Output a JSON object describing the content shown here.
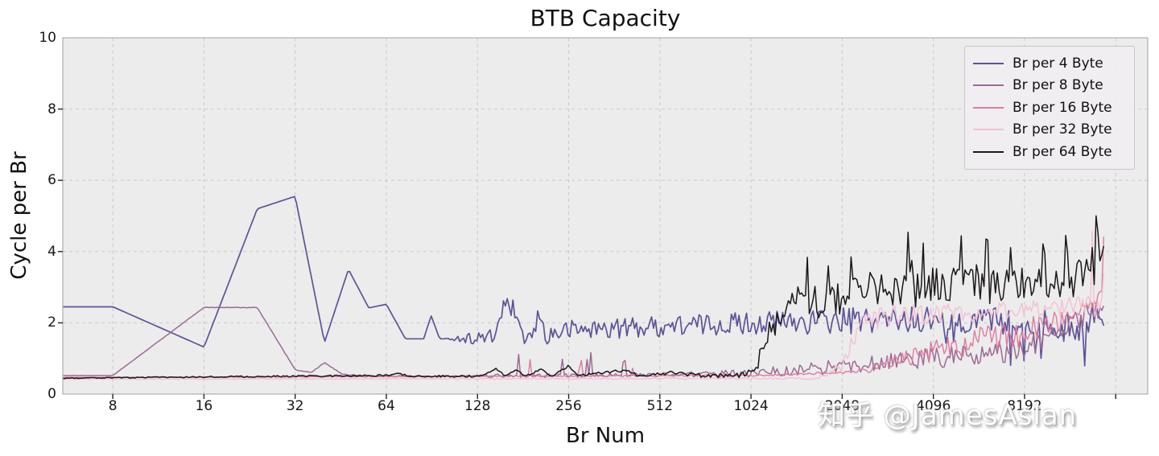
{
  "title": "BTB Capacity",
  "watermark": "知乎 @JamesAslan",
  "chart_data": {
    "type": "line",
    "title": "BTB Capacity",
    "xlabel": "Br Num",
    "ylabel": "Cycle per Br",
    "xscale": "log2",
    "xlim": [
      5.47,
      20900
    ],
    "ylim": [
      0,
      10
    ],
    "x_data_end": 15000,
    "xticks": [
      8,
      16,
      32,
      64,
      128,
      256,
      512,
      1024,
      2048,
      4096,
      8192
    ],
    "xticks_unlabeled": [
      16384
    ],
    "yticks": [
      0,
      2,
      4,
      6,
      8,
      10
    ],
    "grid": "dashed",
    "legend_position": "upper right",
    "style": {
      "plot_bg": "#ececec",
      "grid_color": "#c9c9c9",
      "border_color": "#b2aeb2",
      "tick_color": "#222222",
      "legend_bg": "#f0eef0",
      "legend_border": "#c9c5c9"
    },
    "series": [
      {
        "name": "Br per 4 Byte",
        "color": "#5d5397",
        "linewidth": 1.7,
        "bias": 0,
        "anchors": [
          [
            5.47,
            2.45
          ],
          [
            8,
            2.45
          ],
          [
            16,
            1.32
          ],
          [
            24,
            5.2
          ],
          [
            32,
            5.55
          ],
          [
            40,
            1.45
          ],
          [
            48,
            3.5
          ],
          [
            56,
            2.42
          ],
          [
            64,
            2.52
          ],
          [
            74,
            1.55
          ],
          [
            85,
            1.55
          ],
          [
            90,
            2.2
          ],
          [
            96,
            1.55
          ],
          [
            145,
            1.58
          ],
          [
            156,
            2.48
          ],
          [
            168,
            2.4
          ],
          [
            178,
            1.6
          ],
          [
            196,
            1.6
          ],
          [
            205,
            2.3
          ],
          [
            214,
            1.62
          ],
          [
            256,
            1.8
          ],
          [
            512,
            1.9
          ],
          [
            1024,
            2.0
          ],
          [
            2048,
            2.05
          ],
          [
            4096,
            2.1
          ],
          [
            8192,
            2.05
          ],
          [
            11000,
            1.95
          ],
          [
            13000,
            2.1
          ],
          [
            15000,
            2.35
          ]
        ],
        "noise": [
          [
            5.47,
            0
          ],
          [
            100,
            0
          ],
          [
            130,
            0.22
          ],
          [
            256,
            0.28
          ],
          [
            512,
            0.3
          ],
          [
            1024,
            0.32
          ],
          [
            2048,
            0.38
          ],
          [
            4096,
            0.35
          ],
          [
            8192,
            0.4
          ],
          [
            15000,
            0.45
          ]
        ],
        "spikes": [
          [
            3500,
            8192,
            0.05,
            -1.1
          ],
          [
            8192,
            13500,
            0.2,
            -1.15
          ]
        ]
      },
      {
        "name": "Br per 8 Byte",
        "color": "#9c6b96",
        "linewidth": 1.5,
        "bias": 0,
        "anchors": [
          [
            5.47,
            0.52
          ],
          [
            8,
            0.52
          ],
          [
            16,
            2.43
          ],
          [
            24,
            2.43
          ],
          [
            32,
            0.68
          ],
          [
            36,
            0.6
          ],
          [
            40,
            0.88
          ],
          [
            46,
            0.55
          ],
          [
            60,
            0.5
          ],
          [
            300,
            0.52
          ],
          [
            1024,
            0.58
          ],
          [
            1500,
            0.68
          ],
          [
            2048,
            0.8
          ],
          [
            3000,
            0.92
          ],
          [
            4096,
            1.0
          ],
          [
            6000,
            1.1
          ],
          [
            8192,
            1.3
          ],
          [
            10000,
            1.6
          ],
          [
            12000,
            2.1
          ],
          [
            14000,
            2.3
          ],
          [
            15000,
            2.4
          ]
        ],
        "noise": [
          [
            5.47,
            0
          ],
          [
            120,
            0.02
          ],
          [
            150,
            0.05
          ],
          [
            500,
            0.05
          ],
          [
            1024,
            0.12
          ],
          [
            2048,
            0.22
          ],
          [
            4096,
            0.3
          ],
          [
            8192,
            0.35
          ],
          [
            12000,
            0.3
          ],
          [
            15000,
            0.25
          ]
        ],
        "spikes": [
          [
            150,
            420,
            0.05,
            0.6
          ]
        ]
      },
      {
        "name": "Br per 16 Byte",
        "color": "#dd7c9d",
        "linewidth": 1.4,
        "bias": 1,
        "anchors": [
          [
            5.47,
            0.46
          ],
          [
            1200,
            0.5
          ],
          [
            2500,
            0.6
          ],
          [
            4096,
            0.9
          ],
          [
            6000,
            1.1
          ],
          [
            8192,
            1.35
          ],
          [
            10000,
            1.7
          ],
          [
            12000,
            2.0
          ],
          [
            13000,
            2.2
          ],
          [
            14000,
            2.4
          ],
          [
            14600,
            2.6
          ],
          [
            15000,
            2.9
          ]
        ],
        "noise": [
          [
            5.47,
            0.01
          ],
          [
            150,
            0.03
          ],
          [
            500,
            0.04
          ],
          [
            2300,
            0.08
          ],
          [
            2800,
            0.35
          ],
          [
            4096,
            0.6
          ],
          [
            6000,
            0.85
          ],
          [
            8192,
            0.8
          ],
          [
            10000,
            0.6
          ],
          [
            12000,
            0.45
          ],
          [
            15000,
            0.35
          ]
        ],
        "spikes": [
          [
            160,
            420,
            0.04,
            0.5
          ],
          [
            13800,
            15000,
            0.25,
            2.0
          ]
        ]
      },
      {
        "name": "Br per 32 Byte",
        "color": "#f4c0d3",
        "linewidth": 1.4,
        "bias": 0,
        "anchors": [
          [
            5.47,
            0.42
          ],
          [
            1700,
            0.44
          ],
          [
            2048,
            0.8
          ],
          [
            2200,
            1.5
          ],
          [
            2450,
            2.05
          ],
          [
            3000,
            2.2
          ],
          [
            4096,
            2.25
          ],
          [
            6000,
            2.3
          ],
          [
            8192,
            2.4
          ],
          [
            12000,
            2.45
          ],
          [
            14000,
            2.5
          ],
          [
            15000,
            2.55
          ]
        ],
        "noise": [
          [
            5.47,
            0.01
          ],
          [
            1700,
            0.03
          ],
          [
            2100,
            0.2
          ],
          [
            2450,
            0.3
          ],
          [
            4096,
            0.28
          ],
          [
            8192,
            0.25
          ],
          [
            13000,
            0.3
          ],
          [
            15000,
            0.45
          ]
        ],
        "spikes": [
          [
            13600,
            15000,
            0.25,
            2.6
          ]
        ]
      },
      {
        "name": "Br per 64 Byte",
        "color": "#1b171a",
        "linewidth": 1.5,
        "bias": 0,
        "anchors": [
          [
            5.47,
            0.45
          ],
          [
            60,
            0.52
          ],
          [
            70,
            0.56
          ],
          [
            80,
            0.5
          ],
          [
            130,
            0.5
          ],
          [
            148,
            0.72
          ],
          [
            158,
            0.5
          ],
          [
            172,
            0.68
          ],
          [
            186,
            0.5
          ],
          [
            208,
            0.72
          ],
          [
            225,
            0.5
          ],
          [
            255,
            0.78
          ],
          [
            275,
            0.52
          ],
          [
            400,
            0.68
          ],
          [
            430,
            0.52
          ],
          [
            560,
            0.6
          ],
          [
            700,
            0.52
          ],
          [
            900,
            0.52
          ],
          [
            1000,
            0.58
          ],
          [
            1080,
            0.9
          ],
          [
            1150,
            1.6
          ],
          [
            1300,
            2.3
          ],
          [
            1500,
            2.7
          ],
          [
            1750,
            2.55
          ],
          [
            2048,
            2.75
          ],
          [
            2600,
            2.8
          ],
          [
            3200,
            2.95
          ],
          [
            4096,
            3.0
          ],
          [
            6000,
            3.05
          ],
          [
            8192,
            3.1
          ],
          [
            10000,
            3.15
          ],
          [
            12000,
            3.2
          ],
          [
            14000,
            3.3
          ],
          [
            15000,
            3.6
          ]
        ],
        "noise": [
          [
            5.47,
            0.015
          ],
          [
            120,
            0.03
          ],
          [
            500,
            0.04
          ],
          [
            1000,
            0.08
          ],
          [
            1150,
            0.3
          ],
          [
            1400,
            0.45
          ],
          [
            2048,
            0.5
          ],
          [
            4096,
            0.55
          ],
          [
            8192,
            0.5
          ],
          [
            12000,
            0.55
          ],
          [
            15000,
            0.6
          ]
        ],
        "spikes": [
          [
            1400,
            15000,
            0.12,
            1.3
          ],
          [
            3900,
            4700,
            0.06,
            2.2
          ],
          [
            12500,
            15000,
            0.06,
            1.8
          ]
        ]
      }
    ]
  }
}
